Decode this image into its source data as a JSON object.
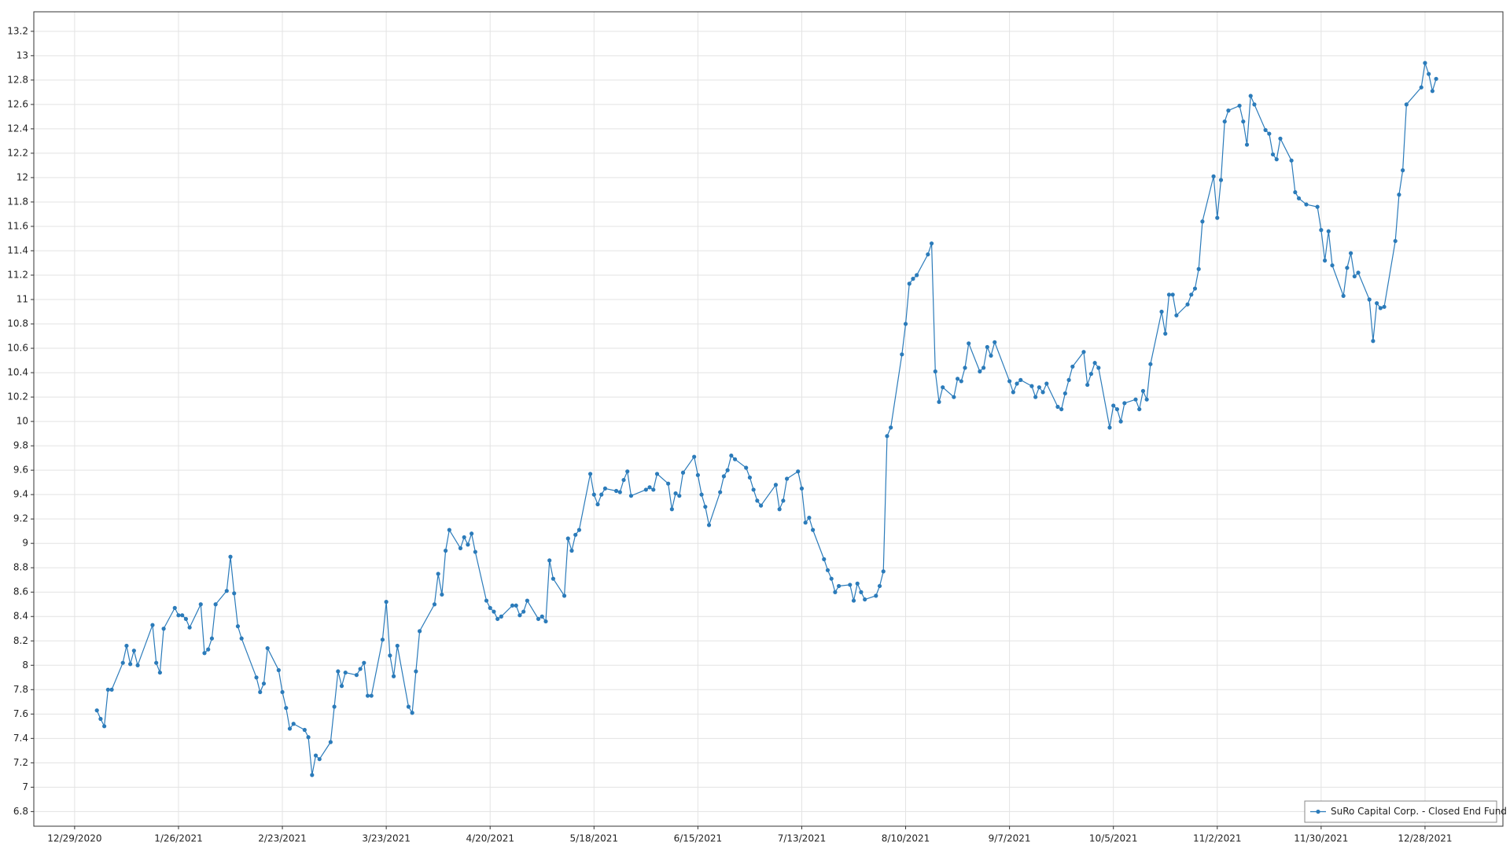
{
  "chart_data": {
    "type": "line",
    "x": [
      "2021-01-04",
      "2021-01-05",
      "2021-01-06",
      "2021-01-07",
      "2021-01-08",
      "2021-01-11",
      "2021-01-12",
      "2021-01-13",
      "2021-01-14",
      "2021-01-15",
      "2021-01-19",
      "2021-01-20",
      "2021-01-21",
      "2021-01-22",
      "2021-01-25",
      "2021-01-26",
      "2021-01-27",
      "2021-01-28",
      "2021-01-29",
      "2021-02-01",
      "2021-02-02",
      "2021-02-03",
      "2021-02-04",
      "2021-02-05",
      "2021-02-08",
      "2021-02-09",
      "2021-02-10",
      "2021-02-11",
      "2021-02-12",
      "2021-02-16",
      "2021-02-17",
      "2021-02-18",
      "2021-02-19",
      "2021-02-22",
      "2021-02-23",
      "2021-02-24",
      "2021-02-25",
      "2021-02-26",
      "2021-03-01",
      "2021-03-02",
      "2021-03-03",
      "2021-03-04",
      "2021-03-05",
      "2021-03-08",
      "2021-03-09",
      "2021-03-10",
      "2021-03-11",
      "2021-03-12",
      "2021-03-15",
      "2021-03-16",
      "2021-03-17",
      "2021-03-18",
      "2021-03-19",
      "2021-03-22",
      "2021-03-23",
      "2021-03-24",
      "2021-03-25",
      "2021-03-26",
      "2021-03-29",
      "2021-03-30",
      "2021-03-31",
      "2021-04-01",
      "2021-04-05",
      "2021-04-06",
      "2021-04-07",
      "2021-04-08",
      "2021-04-09",
      "2021-04-12",
      "2021-04-13",
      "2021-04-14",
      "2021-04-15",
      "2021-04-16",
      "2021-04-19",
      "2021-04-20",
      "2021-04-21",
      "2021-04-22",
      "2021-04-23",
      "2021-04-26",
      "2021-04-27",
      "2021-04-28",
      "2021-04-29",
      "2021-04-30",
      "2021-05-03",
      "2021-05-04",
      "2021-05-05",
      "2021-05-06",
      "2021-05-07",
      "2021-05-10",
      "2021-05-11",
      "2021-05-12",
      "2021-05-13",
      "2021-05-14",
      "2021-05-17",
      "2021-05-18",
      "2021-05-19",
      "2021-05-20",
      "2021-05-21",
      "2021-05-24",
      "2021-05-25",
      "2021-05-26",
      "2021-05-27",
      "2021-05-28",
      "2021-06-01",
      "2021-06-02",
      "2021-06-03",
      "2021-06-04",
      "2021-06-07",
      "2021-06-08",
      "2021-06-09",
      "2021-06-10",
      "2021-06-11",
      "2021-06-14",
      "2021-06-15",
      "2021-06-16",
      "2021-06-17",
      "2021-06-18",
      "2021-06-21",
      "2021-06-22",
      "2021-06-23",
      "2021-06-24",
      "2021-06-25",
      "2021-06-28",
      "2021-06-29",
      "2021-06-30",
      "2021-07-01",
      "2021-07-02",
      "2021-07-06",
      "2021-07-07",
      "2021-07-08",
      "2021-07-09",
      "2021-07-12",
      "2021-07-13",
      "2021-07-14",
      "2021-07-15",
      "2021-07-16",
      "2021-07-19",
      "2021-07-20",
      "2021-07-21",
      "2021-07-22",
      "2021-07-23",
      "2021-07-26",
      "2021-07-27",
      "2021-07-28",
      "2021-07-29",
      "2021-07-30",
      "2021-08-02",
      "2021-08-03",
      "2021-08-04",
      "2021-08-05",
      "2021-08-06",
      "2021-08-09",
      "2021-08-10",
      "2021-08-11",
      "2021-08-12",
      "2021-08-13",
      "2021-08-16",
      "2021-08-17",
      "2021-08-18",
      "2021-08-19",
      "2021-08-20",
      "2021-08-23",
      "2021-08-24",
      "2021-08-25",
      "2021-08-26",
      "2021-08-27",
      "2021-08-30",
      "2021-08-31",
      "2021-09-01",
      "2021-09-02",
      "2021-09-03",
      "2021-09-07",
      "2021-09-08",
      "2021-09-09",
      "2021-09-10",
      "2021-09-13",
      "2021-09-14",
      "2021-09-15",
      "2021-09-16",
      "2021-09-17",
      "2021-09-20",
      "2021-09-21",
      "2021-09-22",
      "2021-09-23",
      "2021-09-24",
      "2021-09-27",
      "2021-09-28",
      "2021-09-29",
      "2021-09-30",
      "2021-10-01",
      "2021-10-04",
      "2021-10-05",
      "2021-10-06",
      "2021-10-07",
      "2021-10-08",
      "2021-10-11",
      "2021-10-12",
      "2021-10-13",
      "2021-10-14",
      "2021-10-15",
      "2021-10-18",
      "2021-10-19",
      "2021-10-20",
      "2021-10-21",
      "2021-10-22",
      "2021-10-25",
      "2021-10-26",
      "2021-10-27",
      "2021-10-28",
      "2021-10-29",
      "2021-11-01",
      "2021-11-02",
      "2021-11-03",
      "2021-11-04",
      "2021-11-05",
      "2021-11-08",
      "2021-11-09",
      "2021-11-10",
      "2021-11-11",
      "2021-11-12",
      "2021-11-15",
      "2021-11-16",
      "2021-11-17",
      "2021-11-18",
      "2021-11-19",
      "2021-11-22",
      "2021-11-23",
      "2021-11-24",
      "2021-11-26",
      "2021-11-29",
      "2021-11-30",
      "2021-12-01",
      "2021-12-02",
      "2021-12-03",
      "2021-12-06",
      "2021-12-07",
      "2021-12-08",
      "2021-12-09",
      "2021-12-10",
      "2021-12-13",
      "2021-12-14",
      "2021-12-15",
      "2021-12-16",
      "2021-12-17",
      "2021-12-20",
      "2021-12-21",
      "2021-12-22",
      "2021-12-23",
      "2021-12-27",
      "2021-12-28",
      "2021-12-29",
      "2021-12-30",
      "2021-12-31"
    ],
    "series": [
      {
        "name": "SuRo Capital Corp. - Closed End Fund",
        "color": "#2b7bba",
        "values": [
          7.63,
          7.56,
          7.5,
          7.8,
          7.8,
          8.02,
          8.16,
          8.01,
          8.12,
          8.0,
          8.33,
          8.02,
          7.94,
          8.3,
          8.47,
          8.41,
          8.41,
          8.38,
          8.31,
          8.5,
          8.1,
          8.13,
          8.22,
          8.5,
          8.61,
          8.89,
          8.59,
          8.32,
          8.22,
          7.9,
          7.78,
          7.85,
          8.14,
          7.96,
          7.78,
          7.65,
          7.48,
          7.52,
          7.47,
          7.41,
          7.1,
          7.26,
          7.23,
          7.37,
          7.66,
          7.95,
          7.83,
          7.94,
          7.92,
          7.97,
          8.02,
          7.75,
          7.75,
          8.21,
          8.52,
          8.08,
          7.91,
          8.16,
          7.66,
          7.61,
          7.95,
          8.28,
          8.5,
          8.75,
          8.58,
          8.94,
          9.11,
          8.96,
          9.05,
          8.99,
          9.08,
          8.93,
          8.53,
          8.47,
          8.44,
          8.38,
          8.4,
          8.49,
          8.49,
          8.41,
          8.44,
          8.53,
          8.38,
          8.4,
          8.36,
          8.86,
          8.71,
          8.57,
          9.04,
          8.94,
          9.07,
          9.11,
          9.57,
          9.4,
          9.32,
          9.4,
          9.45,
          9.43,
          9.42,
          9.52,
          9.59,
          9.39,
          9.44,
          9.46,
          9.44,
          9.57,
          9.49,
          9.28,
          9.41,
          9.39,
          9.58,
          9.71,
          9.56,
          9.4,
          9.3,
          9.15,
          9.42,
          9.55,
          9.6,
          9.72,
          9.69,
          9.62,
          9.54,
          9.44,
          9.35,
          9.31,
          9.48,
          9.28,
          9.35,
          9.53,
          9.59,
          9.45,
          9.17,
          9.21,
          9.11,
          8.87,
          8.78,
          8.71,
          8.6,
          8.65,
          8.66,
          8.53,
          8.67,
          8.6,
          8.54,
          8.57,
          8.65,
          8.77,
          9.88,
          9.95,
          10.55,
          10.8,
          11.13,
          11.17,
          11.2,
          11.37,
          11.46,
          10.41,
          10.16,
          10.28,
          10.2,
          10.35,
          10.33,
          10.44,
          10.64,
          10.41,
          10.44,
          10.61,
          10.54,
          10.65,
          10.33,
          10.24,
          10.31,
          10.34,
          10.29,
          10.2,
          10.28,
          10.24,
          10.31,
          10.12,
          10.1,
          10.23,
          10.34,
          10.45,
          10.57,
          10.3,
          10.39,
          10.48,
          10.44,
          9.95,
          10.13,
          10.1,
          10.0,
          10.15,
          10.18,
          10.1,
          10.25,
          10.18,
          10.47,
          10.9,
          10.72,
          11.04,
          11.04,
          10.87,
          10.96,
          11.04,
          11.09,
          11.25,
          11.64,
          12.01,
          11.67,
          11.98,
          12.46,
          12.55,
          12.59,
          12.46,
          12.27,
          12.67,
          12.6,
          12.39,
          12.36,
          12.19,
          12.15,
          12.32,
          12.14,
          11.88,
          11.83,
          11.78,
          11.76,
          11.57,
          11.32,
          11.56,
          11.28,
          11.03,
          11.26,
          11.38,
          11.19,
          11.22,
          11.0,
          10.66,
          10.97,
          10.93,
          10.94,
          11.48,
          11.86,
          12.06,
          12.6,
          12.74,
          12.94,
          12.85,
          12.71,
          12.81
        ]
      }
    ],
    "xlim": [
      "2020-12-18",
      "2022-01-18"
    ],
    "xticks": [
      {
        "value": "2020-12-29",
        "label": "12/29/2020"
      },
      {
        "value": "2021-01-26",
        "label": "1/26/2021"
      },
      {
        "value": "2021-02-23",
        "label": "2/23/2021"
      },
      {
        "value": "2021-03-23",
        "label": "3/23/2021"
      },
      {
        "value": "2021-04-20",
        "label": "4/20/2021"
      },
      {
        "value": "2021-05-18",
        "label": "5/18/2021"
      },
      {
        "value": "2021-06-15",
        "label": "6/15/2021"
      },
      {
        "value": "2021-07-13",
        "label": "7/13/2021"
      },
      {
        "value": "2021-08-10",
        "label": "8/10/2021"
      },
      {
        "value": "2021-09-07",
        "label": "9/7/2021"
      },
      {
        "value": "2021-10-05",
        "label": "10/5/2021"
      },
      {
        "value": "2021-11-02",
        "label": "11/2/2021"
      },
      {
        "value": "2021-11-30",
        "label": "11/30/2021"
      },
      {
        "value": "2021-12-28",
        "label": "12/28/2021"
      }
    ],
    "ylim": [
      6.68,
      13.36
    ],
    "yticks": [
      6.8,
      7,
      7.2,
      7.4,
      7.6,
      7.8,
      8,
      8.2,
      8.4,
      8.6,
      8.8,
      9,
      9.2,
      9.4,
      9.6,
      9.8,
      10,
      10.2,
      10.4,
      10.6,
      10.8,
      11,
      11.2,
      11.4,
      11.6,
      11.8,
      12,
      12.2,
      12.4,
      12.6,
      12.8,
      13,
      13.2
    ],
    "grid": true,
    "legend": "lower right"
  }
}
